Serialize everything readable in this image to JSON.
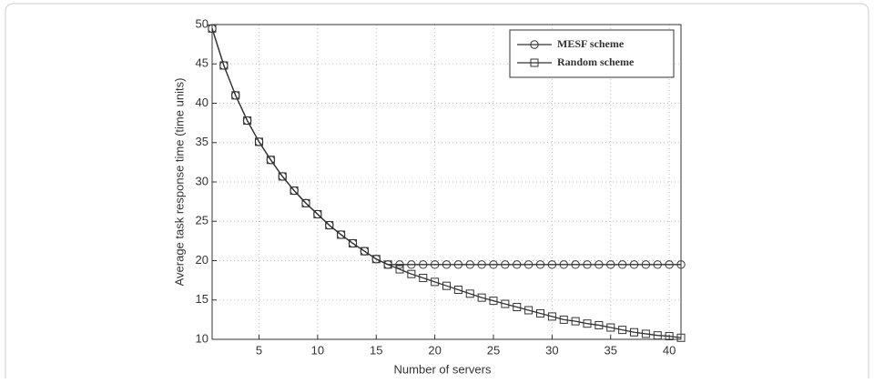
{
  "chart_data": {
    "type": "line",
    "x_label": "Number of servers",
    "y_label": "Average task response time (time units)",
    "x": [
      1,
      2,
      3,
      4,
      5,
      6,
      7,
      8,
      9,
      10,
      11,
      12,
      13,
      14,
      15,
      16,
      17,
      18,
      19,
      20,
      21,
      22,
      23,
      24,
      25,
      26,
      27,
      28,
      29,
      30,
      31,
      32,
      33,
      34,
      35,
      36,
      37,
      38,
      39,
      40,
      41
    ],
    "series": [
      {
        "name": "MESF scheme",
        "color": "#333333",
        "marker": "circle",
        "values": [
          49.5,
          44.8,
          41.0,
          37.8,
          35.1,
          32.8,
          30.7,
          28.9,
          27.3,
          25.9,
          24.5,
          23.3,
          22.2,
          21.2,
          20.2,
          19.5,
          19.5,
          19.5,
          19.5,
          19.5,
          19.5,
          19.5,
          19.5,
          19.5,
          19.5,
          19.5,
          19.5,
          19.5,
          19.5,
          19.5,
          19.5,
          19.5,
          19.5,
          19.5,
          19.5,
          19.5,
          19.5,
          19.5,
          19.5,
          19.5,
          19.5
        ]
      },
      {
        "name": "Random scheme",
        "color": "#333333",
        "marker": "square",
        "values": [
          49.5,
          44.8,
          41.0,
          37.8,
          35.1,
          32.8,
          30.7,
          28.9,
          27.3,
          25.9,
          24.5,
          23.3,
          22.2,
          21.2,
          20.2,
          19.5,
          18.9,
          18.3,
          17.8,
          17.3,
          16.8,
          16.3,
          15.8,
          15.3,
          14.9,
          14.5,
          14.1,
          13.7,
          13.3,
          12.9,
          12.5,
          12.3,
          12.0,
          11.8,
          11.5,
          11.2,
          10.9,
          10.7,
          10.5,
          10.4,
          10.2
        ]
      }
    ],
    "xlim": [
      1,
      41
    ],
    "xticks": [
      5,
      10,
      15,
      20,
      25,
      30,
      35,
      40
    ],
    "ylim": [
      10,
      50
    ],
    "yticks": [
      10,
      15,
      20,
      25,
      30,
      35,
      40,
      45,
      50
    ],
    "grid": true,
    "legend": "upper right"
  }
}
